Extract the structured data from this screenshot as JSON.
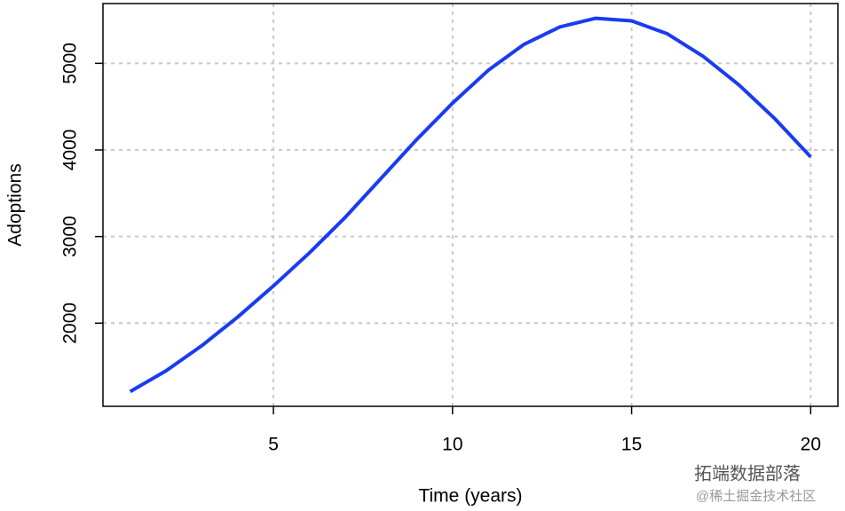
{
  "chart_data": {
    "type": "line",
    "x_label": "Time (years)",
    "y_label": "Adoptions",
    "x": [
      1,
      2,
      3,
      4,
      5,
      6,
      7,
      8,
      9,
      10,
      11,
      12,
      13,
      14,
      15,
      16,
      17,
      18,
      19,
      20
    ],
    "y": [
      1210,
      1450,
      1740,
      2070,
      2430,
      2810,
      3220,
      3670,
      4120,
      4540,
      4920,
      5220,
      5420,
      5520,
      5490,
      5340,
      5080,
      4750,
      4360,
      3920
    ],
    "color": "#1a3cf0",
    "xlim": [
      0.24,
      20.76
    ],
    "xticks": [
      5,
      10,
      15,
      20
    ],
    "ylim": [
      1040,
      5690
    ],
    "yticks": [
      2000,
      3000,
      4000,
      5000
    ],
    "grid": true
  },
  "watermark": {
    "line1": "拓端数据部落",
    "line2": "@稀土掘金技术社区"
  }
}
